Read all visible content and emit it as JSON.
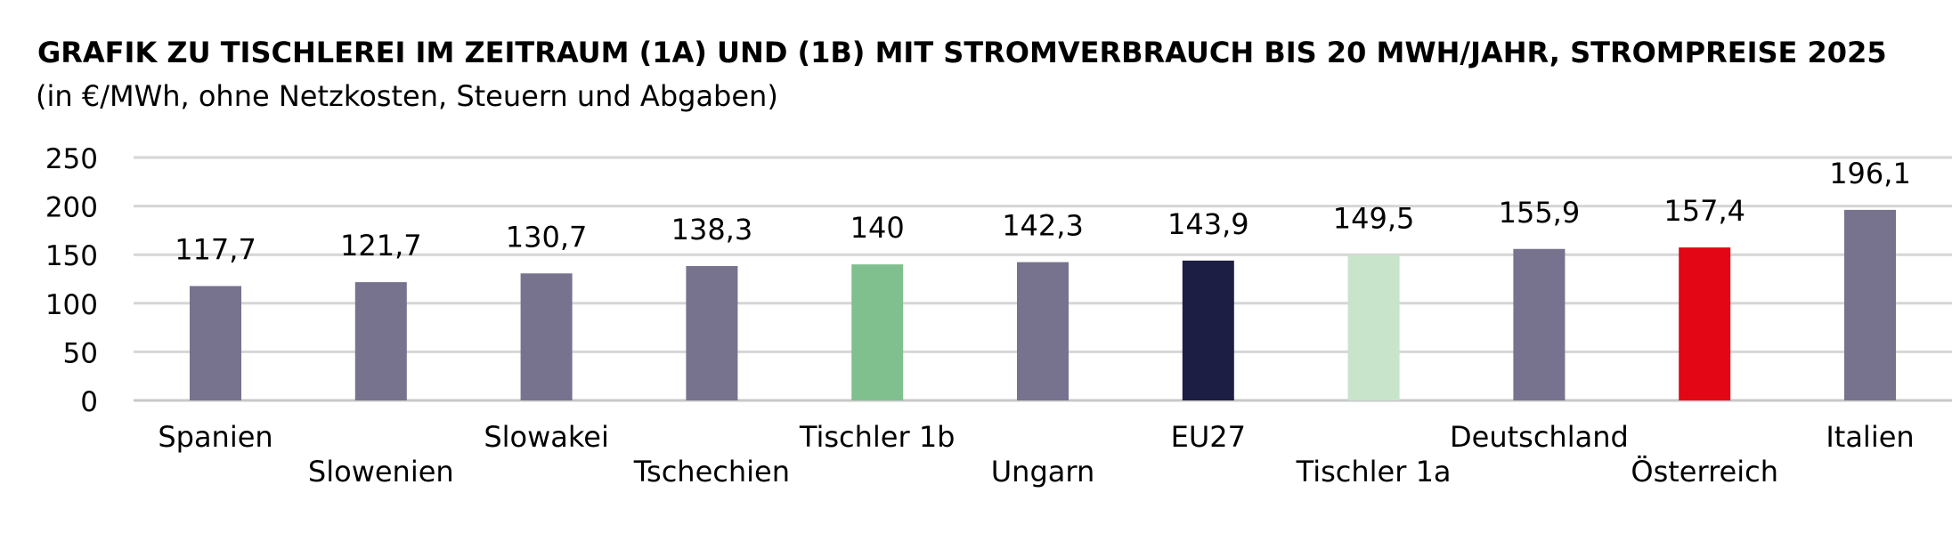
{
  "chart_data": {
    "type": "bar",
    "title": "GRAFIK ZU TISCHLEREI IM ZEITRAUM (1A) UND (1B) MIT STROMVERBRAUCH BIS 20 MWH/JAHR, STROMPREISE 2025",
    "subtitle": "(in €/MWh, ohne Netzkosten, Steuern und Abgaben)",
    "xlabel": "",
    "ylabel": "",
    "ylim": [
      0,
      250
    ],
    "yticks": [
      "0",
      "50",
      "100",
      "150",
      "200",
      "250"
    ],
    "grid": true,
    "legend": "none",
    "categories": [
      "Spanien",
      "Slowenien",
      "Slowakei",
      "Tschechien",
      "Tischler 1b",
      "Ungarn",
      "EU27",
      "Tischler 1a",
      "Deutschland",
      "Österreich",
      "Italien"
    ],
    "values": [
      117.7,
      121.7,
      130.7,
      138.3,
      140,
      142.3,
      143.9,
      149.5,
      155.9,
      157.4,
      196.1
    ],
    "value_labels": [
      "117,7",
      "121,7",
      "130,7",
      "138,3",
      "140",
      "142,3",
      "143,9",
      "149,5",
      "155,9",
      "157,4",
      "196,1"
    ],
    "colors": [
      "#77728e",
      "#77728e",
      "#77728e",
      "#77728e",
      "#80c08e",
      "#77728e",
      "#1c1e44",
      "#c8e4cb",
      "#77728e",
      "#e30614",
      "#77728e"
    ]
  }
}
